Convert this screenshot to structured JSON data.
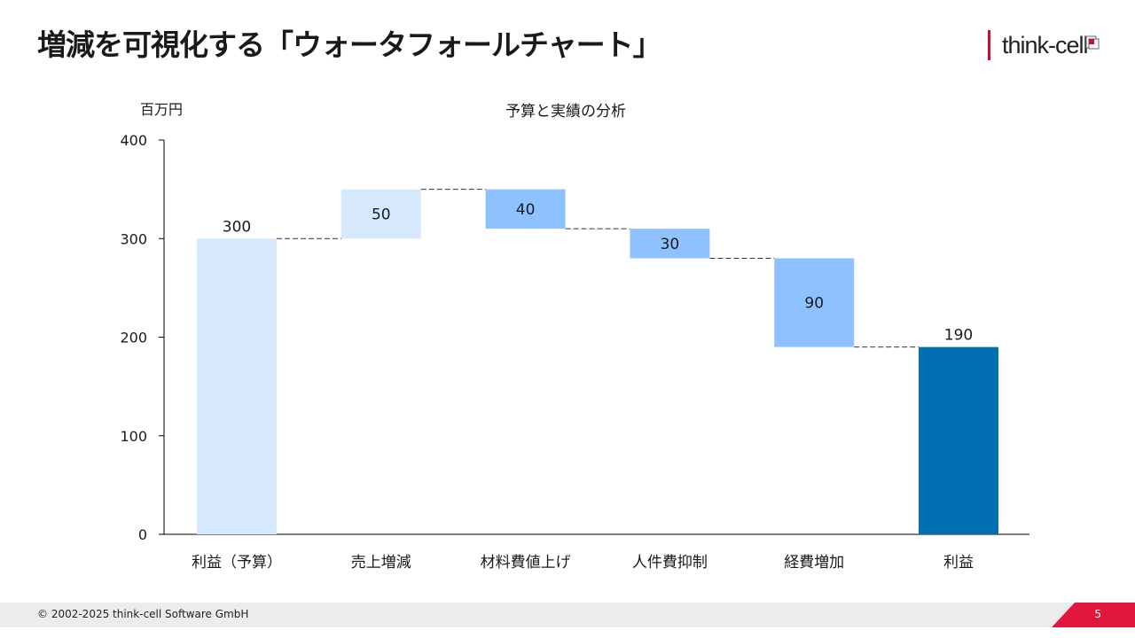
{
  "page": {
    "title": "増減を可視化する「ウォータフォールチャート」",
    "logo_text": "think-cell",
    "copyright": "© 2002-2025 think-cell Software GmbH",
    "page_number": "5"
  },
  "colors": {
    "light": "#d6e8fb",
    "medium": "#8dc1ff",
    "dark": "#0070b3",
    "accent": "#e2173d"
  },
  "chart_data": {
    "type": "waterfall",
    "title": "予算と実績の分析",
    "ylabel": "百万円",
    "ylim": [
      0,
      400
    ],
    "yticks": [
      0,
      100,
      200,
      300,
      400
    ],
    "categories": [
      "利益（予算）",
      "売上増減",
      "材料費値上げ",
      "人件費抑制",
      "経費増加",
      "利益"
    ],
    "steps": [
      {
        "category": "利益（予算）",
        "kind": "total",
        "start": 0,
        "end": 300,
        "label": "300",
        "color": "light"
      },
      {
        "category": "売上増減",
        "kind": "increase",
        "start": 300,
        "end": 350,
        "label": "50",
        "color": "light"
      },
      {
        "category": "材料費値上げ",
        "kind": "decrease",
        "start": 350,
        "end": 310,
        "label": "40",
        "color": "medium"
      },
      {
        "category": "人件費抑制",
        "kind": "decrease",
        "start": 310,
        "end": 280,
        "label": "30",
        "color": "medium"
      },
      {
        "category": "経費増加",
        "kind": "decrease",
        "start": 280,
        "end": 190,
        "label": "90",
        "color": "medium"
      },
      {
        "category": "利益",
        "kind": "total",
        "start": 0,
        "end": 190,
        "label": "190",
        "color": "dark"
      }
    ]
  }
}
